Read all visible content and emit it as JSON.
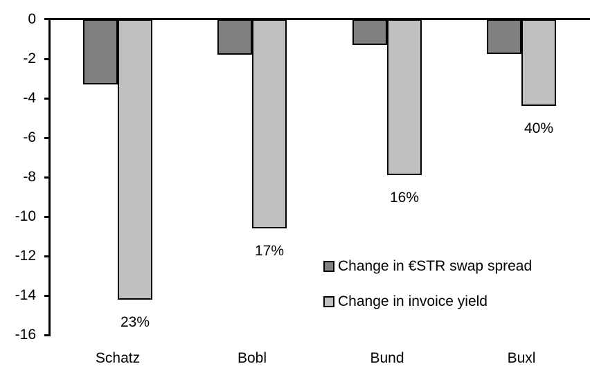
{
  "chart_data": {
    "type": "bar",
    "title": "",
    "xlabel": "",
    "ylabel": "",
    "categories": [
      "Schatz",
      "Bobl",
      "Bund",
      "Buxl"
    ],
    "series": [
      {
        "name": "Change in €STR swap spread",
        "color": "#808080",
        "values": [
          -3.3,
          -1.8,
          -1.3,
          -1.75
        ]
      },
      {
        "name": "Change in invoice yield",
        "color": "#BFBFBF",
        "values": [
          -14.2,
          -10.6,
          -7.9,
          -4.4
        ],
        "labels": [
          "23%",
          "17%",
          "16%",
          "40%"
        ]
      }
    ],
    "ylim": [
      -16,
      0
    ],
    "yticks": [
      0,
      -2,
      -4,
      -6,
      -8,
      -10,
      -12,
      -14,
      -16
    ],
    "grid": false,
    "legend_position": "inside-right",
    "bar_border_color": "#000000",
    "axis_color": "#000000",
    "text_color": "#000000"
  }
}
